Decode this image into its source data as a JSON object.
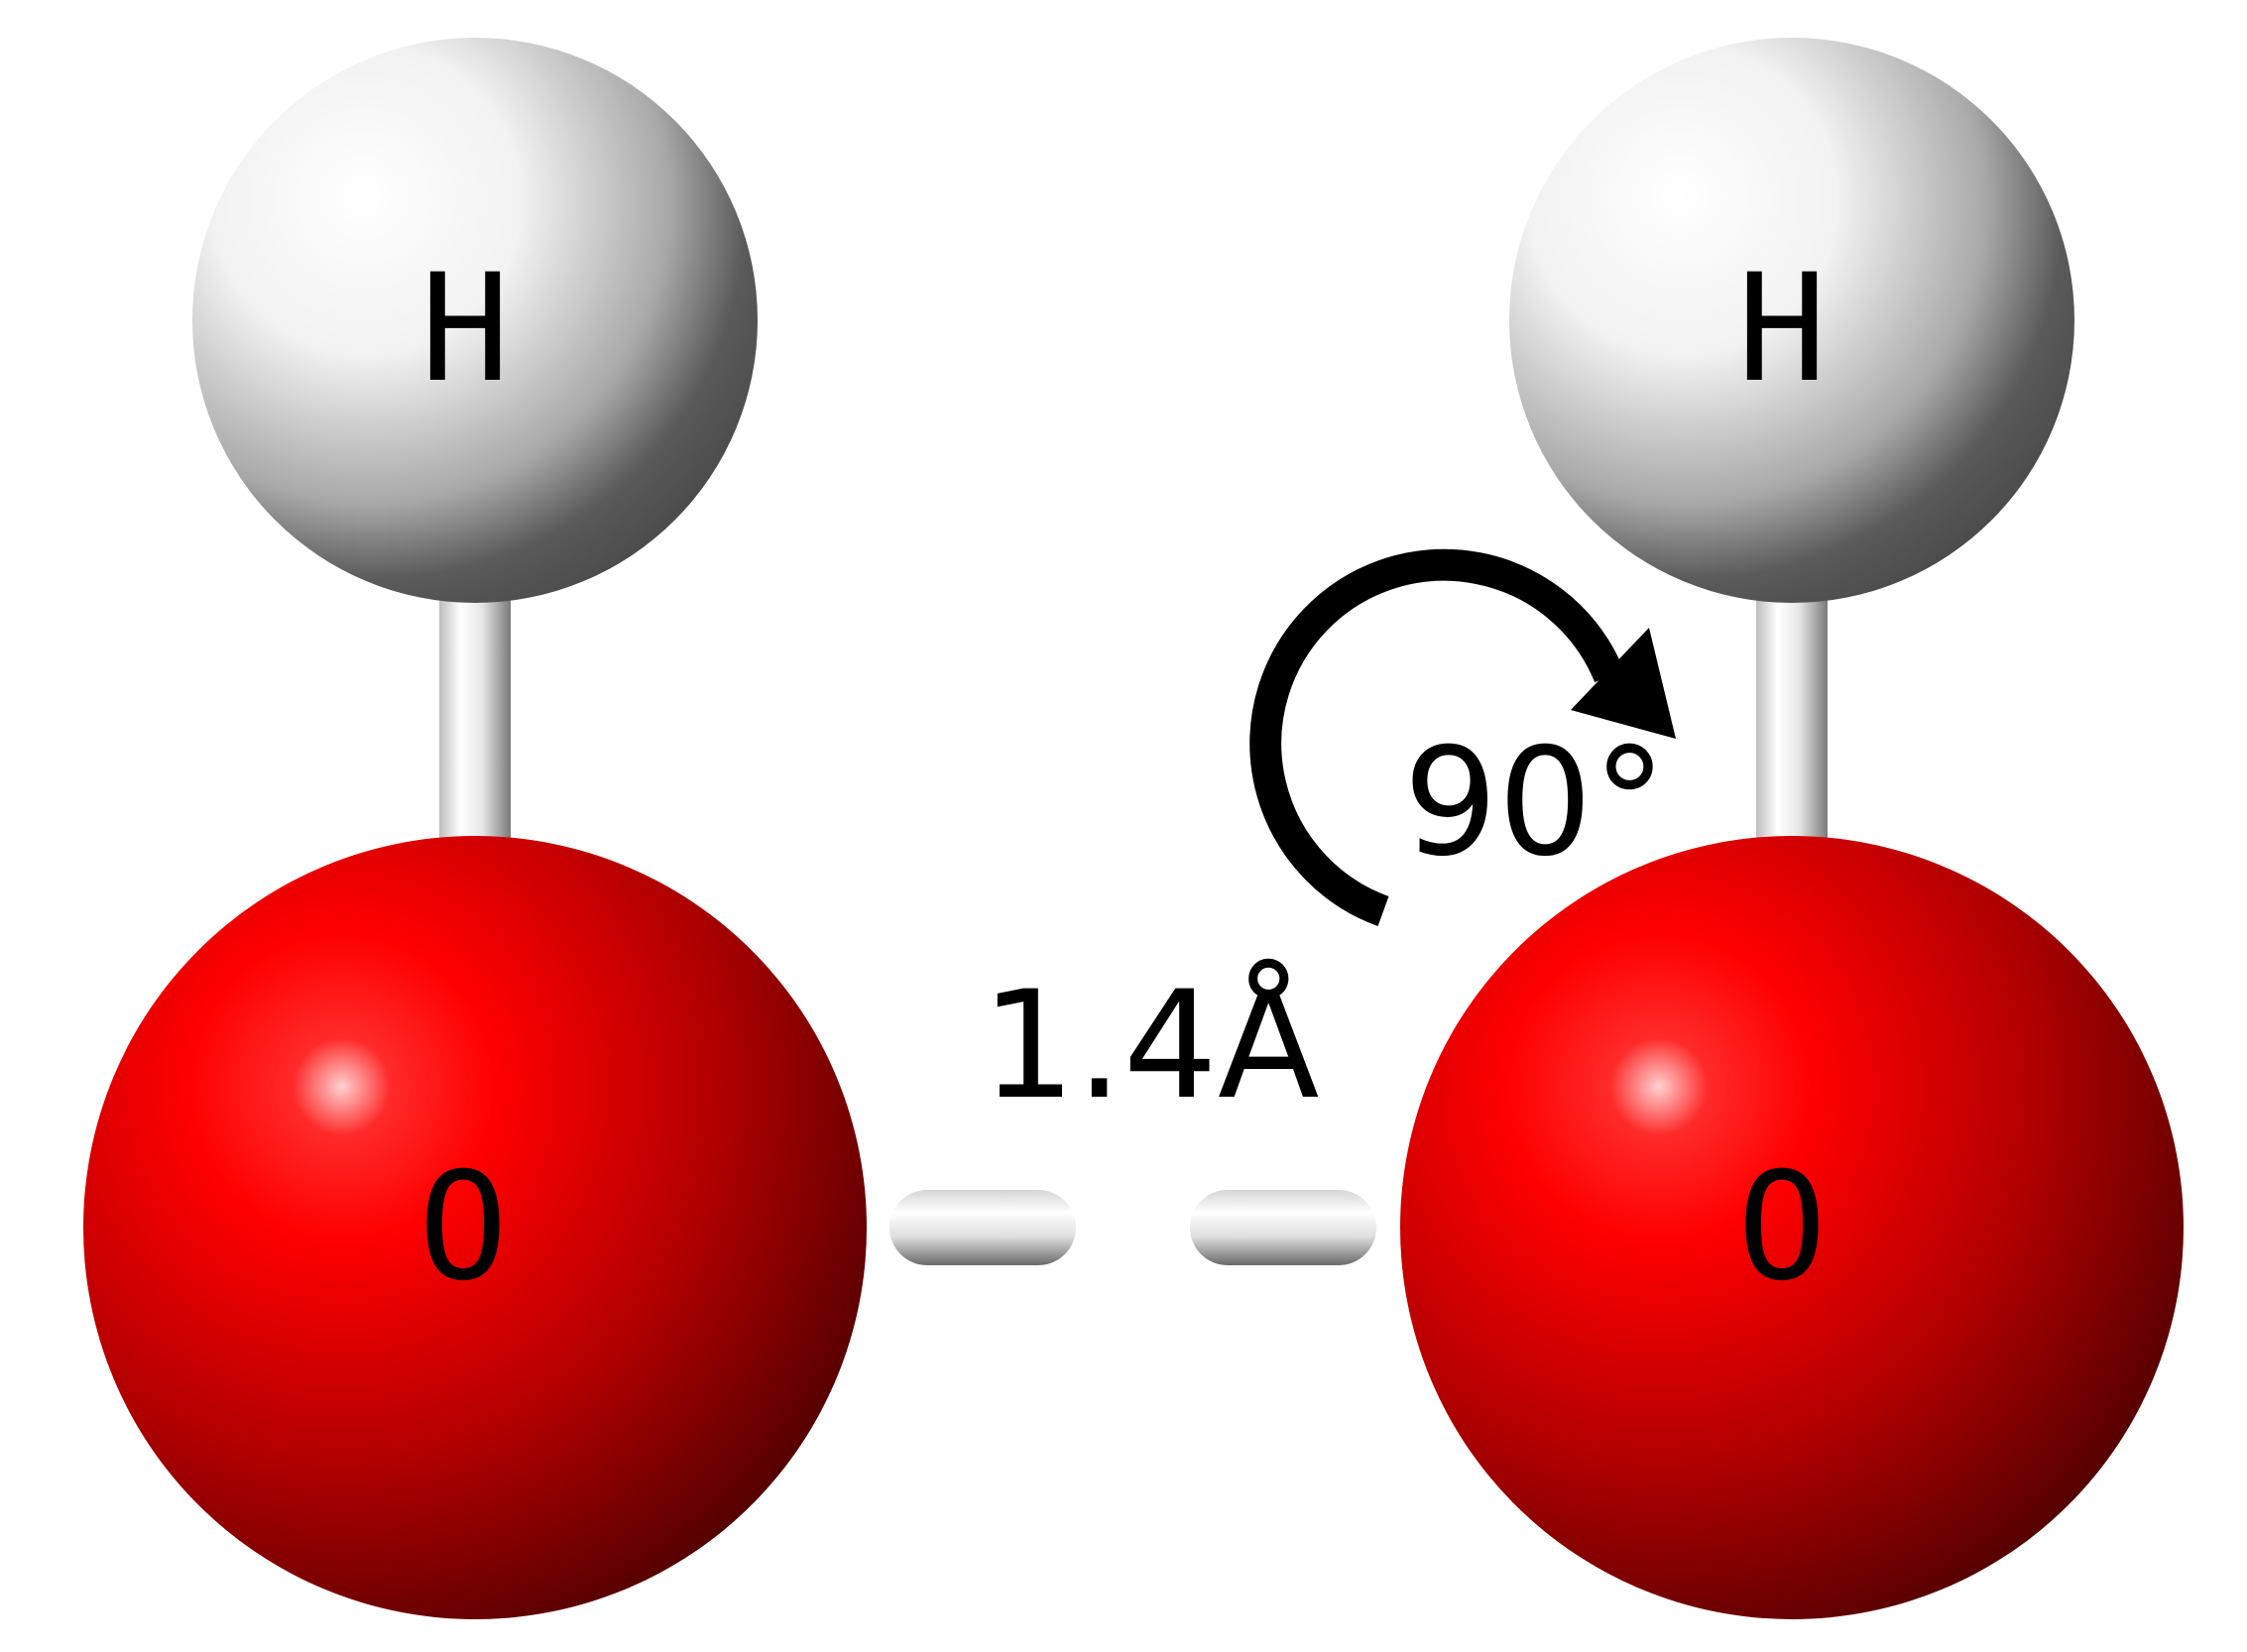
{
  "atoms": {
    "left_hydrogen": {
      "label": "H"
    },
    "left_oxygen": {
      "label": "O"
    },
    "right_hydrogen": {
      "label": "H"
    },
    "right_oxygen": {
      "label": "O"
    }
  },
  "annotations": {
    "bond_length": "1.4Å",
    "rotation_angle": "90°"
  },
  "colors": {
    "oxygen": "#ff0000",
    "oxygen_dark": "#4a0000",
    "hydrogen": "#ffffff",
    "hydrogen_dark": "#4a4a4a",
    "background": "#ffffff",
    "text": "#000000"
  },
  "icons": {
    "rotation": "curved-arrow-clockwise-icon"
  }
}
